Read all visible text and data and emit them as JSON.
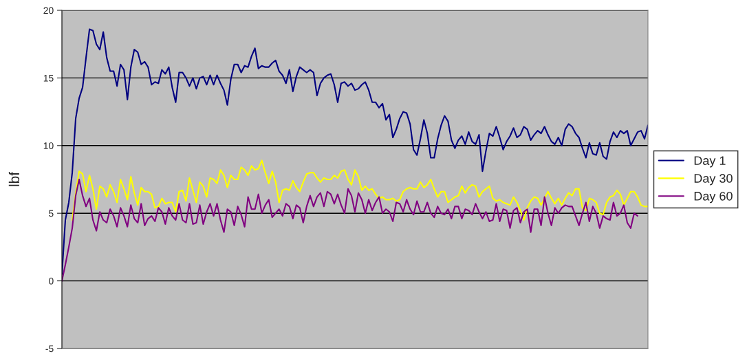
{
  "chart_data": {
    "type": "line",
    "ylabel": "lbf",
    "categories": [
      null,
      null,
      null,
      null,
      null,
      null,
      null,
      null,
      null,
      null,
      null,
      null,
      null,
      null,
      null,
      null,
      null,
      null,
      null,
      null,
      null,
      null,
      null,
      null,
      null,
      null,
      null,
      null,
      null,
      null,
      null,
      null,
      null,
      null,
      null,
      null,
      null,
      null,
      null,
      null,
      null,
      null,
      null,
      null,
      null,
      null,
      null,
      null,
      null,
      null,
      null,
      null,
      null,
      null,
      null,
      null,
      null,
      null,
      null,
      null,
      null,
      null,
      null,
      null,
      null,
      null,
      null,
      null,
      null,
      null,
      null,
      null,
      null,
      null,
      null,
      null,
      null,
      null,
      null,
      null,
      null,
      null,
      null,
      null,
      null,
      null,
      null,
      null,
      null,
      null,
      null,
      null,
      null,
      null,
      null,
      null,
      null,
      null,
      null,
      null,
      null,
      null,
      null,
      null,
      null,
      null,
      null,
      null,
      null,
      null,
      null,
      null,
      null,
      null,
      null,
      null,
      null,
      null,
      null,
      null,
      null,
      null,
      null,
      null,
      null,
      null,
      null,
      null,
      null,
      null,
      null,
      null,
      null,
      null,
      null,
      null,
      null,
      null,
      null,
      null,
      null,
      null,
      null,
      null,
      null,
      null,
      null,
      null,
      null,
      null,
      null,
      null,
      null,
      null,
      null,
      null,
      null,
      null,
      null,
      null,
      null,
      null,
      null,
      null,
      null,
      null,
      null,
      null,
      null,
      null,
      null
    ],
    "ylim": [
      -5,
      20
    ],
    "yticks": [
      -5,
      0,
      5,
      10,
      15,
      20
    ],
    "grid": "y",
    "legend": "right",
    "tick_labels": "y",
    "marker": "none",
    "line_style": "solid",
    "series": [
      {
        "name": "Day 1",
        "color": "#000080",
        "values": [
          0.5,
          4.5,
          5.8,
          8,
          12,
          13.5,
          14.3,
          16.5,
          18.6,
          18.5,
          17.5,
          17.1,
          18.4,
          16.5,
          15.5,
          15.5,
          14.4,
          16,
          15.6,
          13.4,
          15.8,
          17.1,
          16.9,
          16,
          16.2,
          15.8,
          14.5,
          14.7,
          14.6,
          15.6,
          15.3,
          15.8,
          14.3,
          13.2,
          15.4,
          15.4,
          15,
          14.4,
          15,
          14.2,
          15,
          15.1,
          14.5,
          15.2,
          14.5,
          15.2,
          14.6,
          14.1,
          13,
          14.9,
          16,
          16,
          15.4,
          15.9,
          15.8,
          16.6,
          17.2,
          15.7,
          15.9,
          15.8,
          15.8,
          16.1,
          16.3,
          15.5,
          15.2,
          14.6,
          15.6,
          14,
          15.1,
          15.8,
          15.6,
          15.4,
          15.6,
          15.4,
          13.7,
          14.6,
          15,
          15.2,
          15.3,
          14.5,
          13.2,
          14.6,
          14.7,
          14.4,
          14.6,
          14.1,
          14.2,
          14.5,
          14.7,
          14.1,
          13.2,
          13.2,
          12.8,
          13.1,
          11.9,
          12.3,
          10.6,
          11.2,
          12,
          12.5,
          12.4,
          11.6,
          9.7,
          9.3,
          10.5,
          11.9,
          10.9,
          9.1,
          9.1,
          10.5,
          11.5,
          12.2,
          11.8,
          10.4,
          9.8,
          10.4,
          10.7,
          10.1,
          11,
          10.3,
          10.1,
          10.8,
          8.1,
          9.6,
          10.9,
          10.7,
          11.4,
          10.6,
          9.7,
          10.3,
          10.7,
          11.3,
          10.6,
          10.8,
          11.4,
          11.2,
          10.4,
          10.8,
          11.1,
          10.9,
          11.4,
          10.8,
          10.3,
          10.1,
          10.6,
          10,
          11.2,
          11.6,
          11.4,
          10.9,
          10.6,
          9.8,
          9.1,
          10.2,
          9.4,
          9.3,
          10.2,
          9.2,
          9.0,
          10.3,
          11.0,
          10.6,
          11.1,
          10.9,
          11.1,
          10.0,
          10.5,
          11.0,
          11.1,
          10.5,
          11.5
        ]
      },
      {
        "name": "Day 30",
        "color": "#ffff00",
        "values": [
          null,
          null,
          null,
          4.5,
          6.5,
          8.1,
          7.9,
          6.6,
          7.8,
          6.8,
          5.3,
          7.0,
          6.8,
          6.2,
          7.1,
          6.6,
          5.8,
          7.5,
          6.8,
          6.0,
          7.7,
          6.5,
          5.6,
          6.9,
          6.6,
          6.6,
          6.4,
          5.4,
          5.5,
          6.1,
          5.7,
          5.8,
          5.8,
          5.1,
          6.6,
          6.7,
          5.9,
          7.6,
          6.7,
          5.8,
          7.3,
          7.0,
          6.2,
          7.6,
          7.5,
          7.2,
          8.2,
          7.8,
          6.9,
          7.8,
          7.5,
          7.5,
          8.4,
          8.2,
          7.8,
          8.5,
          8.2,
          8.3,
          8.9,
          8.0,
          7.2,
          8.1,
          7.3,
          5.8,
          6.7,
          6.8,
          6.7,
          7.4,
          6.9,
          6.6,
          7.3,
          7.9,
          8.0,
          8.0,
          7.6,
          7.3,
          7.6,
          7.5,
          7.5,
          7.8,
          7.6,
          8.1,
          8.2,
          7.5,
          7.1,
          8.2,
          7.7,
          6.7,
          7.0,
          6.7,
          6.8,
          6.4,
          6.1,
          6.2,
          6.0,
          6.0,
          6.1,
          5.9,
          6.0,
          6.6,
          6.8,
          6.9,
          6.8,
          6.8,
          7.3,
          6.9,
          7.1,
          7.5,
          6.8,
          6.2,
          6.6,
          6.6,
          5.8,
          6.0,
          6.2,
          6.3,
          7.0,
          6.5,
          6.9,
          7.1,
          7.0,
          6.2,
          6.6,
          6.8,
          7.0,
          6.1,
          5.9,
          6.0,
          5.8,
          5.7,
          5.6,
          6.2,
          5.8,
          5.2,
          4.5,
          5.4,
          5.9,
          6.2,
          6.1,
          5.6,
          6.1,
          6.6,
          6.1,
          5.7,
          6.1,
          5.6,
          6.1,
          6.5,
          6.3,
          6.8,
          6.8,
          5.4,
          5.2,
          6.1,
          6.0,
          5.8,
          5.0,
          4.9,
          5.8,
          6.2,
          6.3,
          6.7,
          6.4,
          5.6,
          6.1,
          6.6,
          6.6,
          6.2,
          5.6,
          5.5,
          5.5
        ]
      },
      {
        "name": "Day 60",
        "color": "#800080",
        "values": [
          0,
          1.2,
          2.5,
          3.9,
          6.3,
          7.5,
          6.3,
          5.5,
          6.1,
          4.5,
          3.7,
          5.1,
          4.5,
          4.3,
          5.3,
          4.8,
          4.0,
          5.4,
          4.8,
          4.0,
          5.6,
          4.6,
          4.3,
          5.7,
          4.1,
          4.6,
          4.8,
          4.4,
          5.4,
          5.1,
          4.2,
          5.4,
          4.8,
          4.5,
          5.7,
          4.5,
          4.3,
          5.7,
          4.2,
          4.3,
          5.6,
          4.2,
          5.1,
          5.7,
          4.8,
          5.7,
          4.5,
          3.6,
          5.3,
          5.1,
          4.1,
          5.5,
          4.9,
          4.0,
          6.2,
          5.3,
          5.3,
          6.4,
          5.0,
          5.6,
          6.0,
          4.7,
          5.0,
          5.3,
          4.8,
          5.7,
          5.5,
          4.6,
          5.6,
          5.4,
          4.3,
          5.5,
          6.3,
          5.5,
          6.2,
          6.5,
          5.5,
          6.6,
          6.4,
          5.7,
          6.4,
          5.6,
          5.0,
          6.8,
          6.3,
          5.1,
          6.5,
          6.0,
          5.0,
          6.0,
          5.2,
          5.8,
          6.2,
          5.0,
          5.3,
          5.1,
          4.4,
          5.8,
          5.7,
          5.1,
          6.0,
          5.3,
          4.9,
          5.9,
          5.1,
          5.1,
          5.8,
          5.0,
          4.7,
          5.5,
          5.0,
          4.9,
          5.3,
          4.6,
          5.5,
          5.5,
          4.6,
          5.3,
          5.2,
          4.9,
          5.7,
          5.1,
          4.6,
          5.1,
          4.4,
          4.5,
          5.7,
          4.4,
          5.3,
          5.2,
          3.9,
          5.2,
          5.4,
          4.3,
          5.1,
          5.3,
          3.6,
          5.3,
          5.3,
          4.1,
          6.2,
          5.0,
          4.1,
          5.4,
          5.0,
          5.4,
          5.6,
          5.5,
          5.5,
          4.8,
          4.1,
          5.0,
          5.8,
          4.4,
          5.5,
          5.0,
          3.9,
          4.8,
          4.6,
          4.5,
          5.8,
          4.8,
          5.0,
          5.6,
          4.3,
          3.9,
          5.0,
          4.8,
          null,
          null,
          null
        ]
      }
    ]
  }
}
